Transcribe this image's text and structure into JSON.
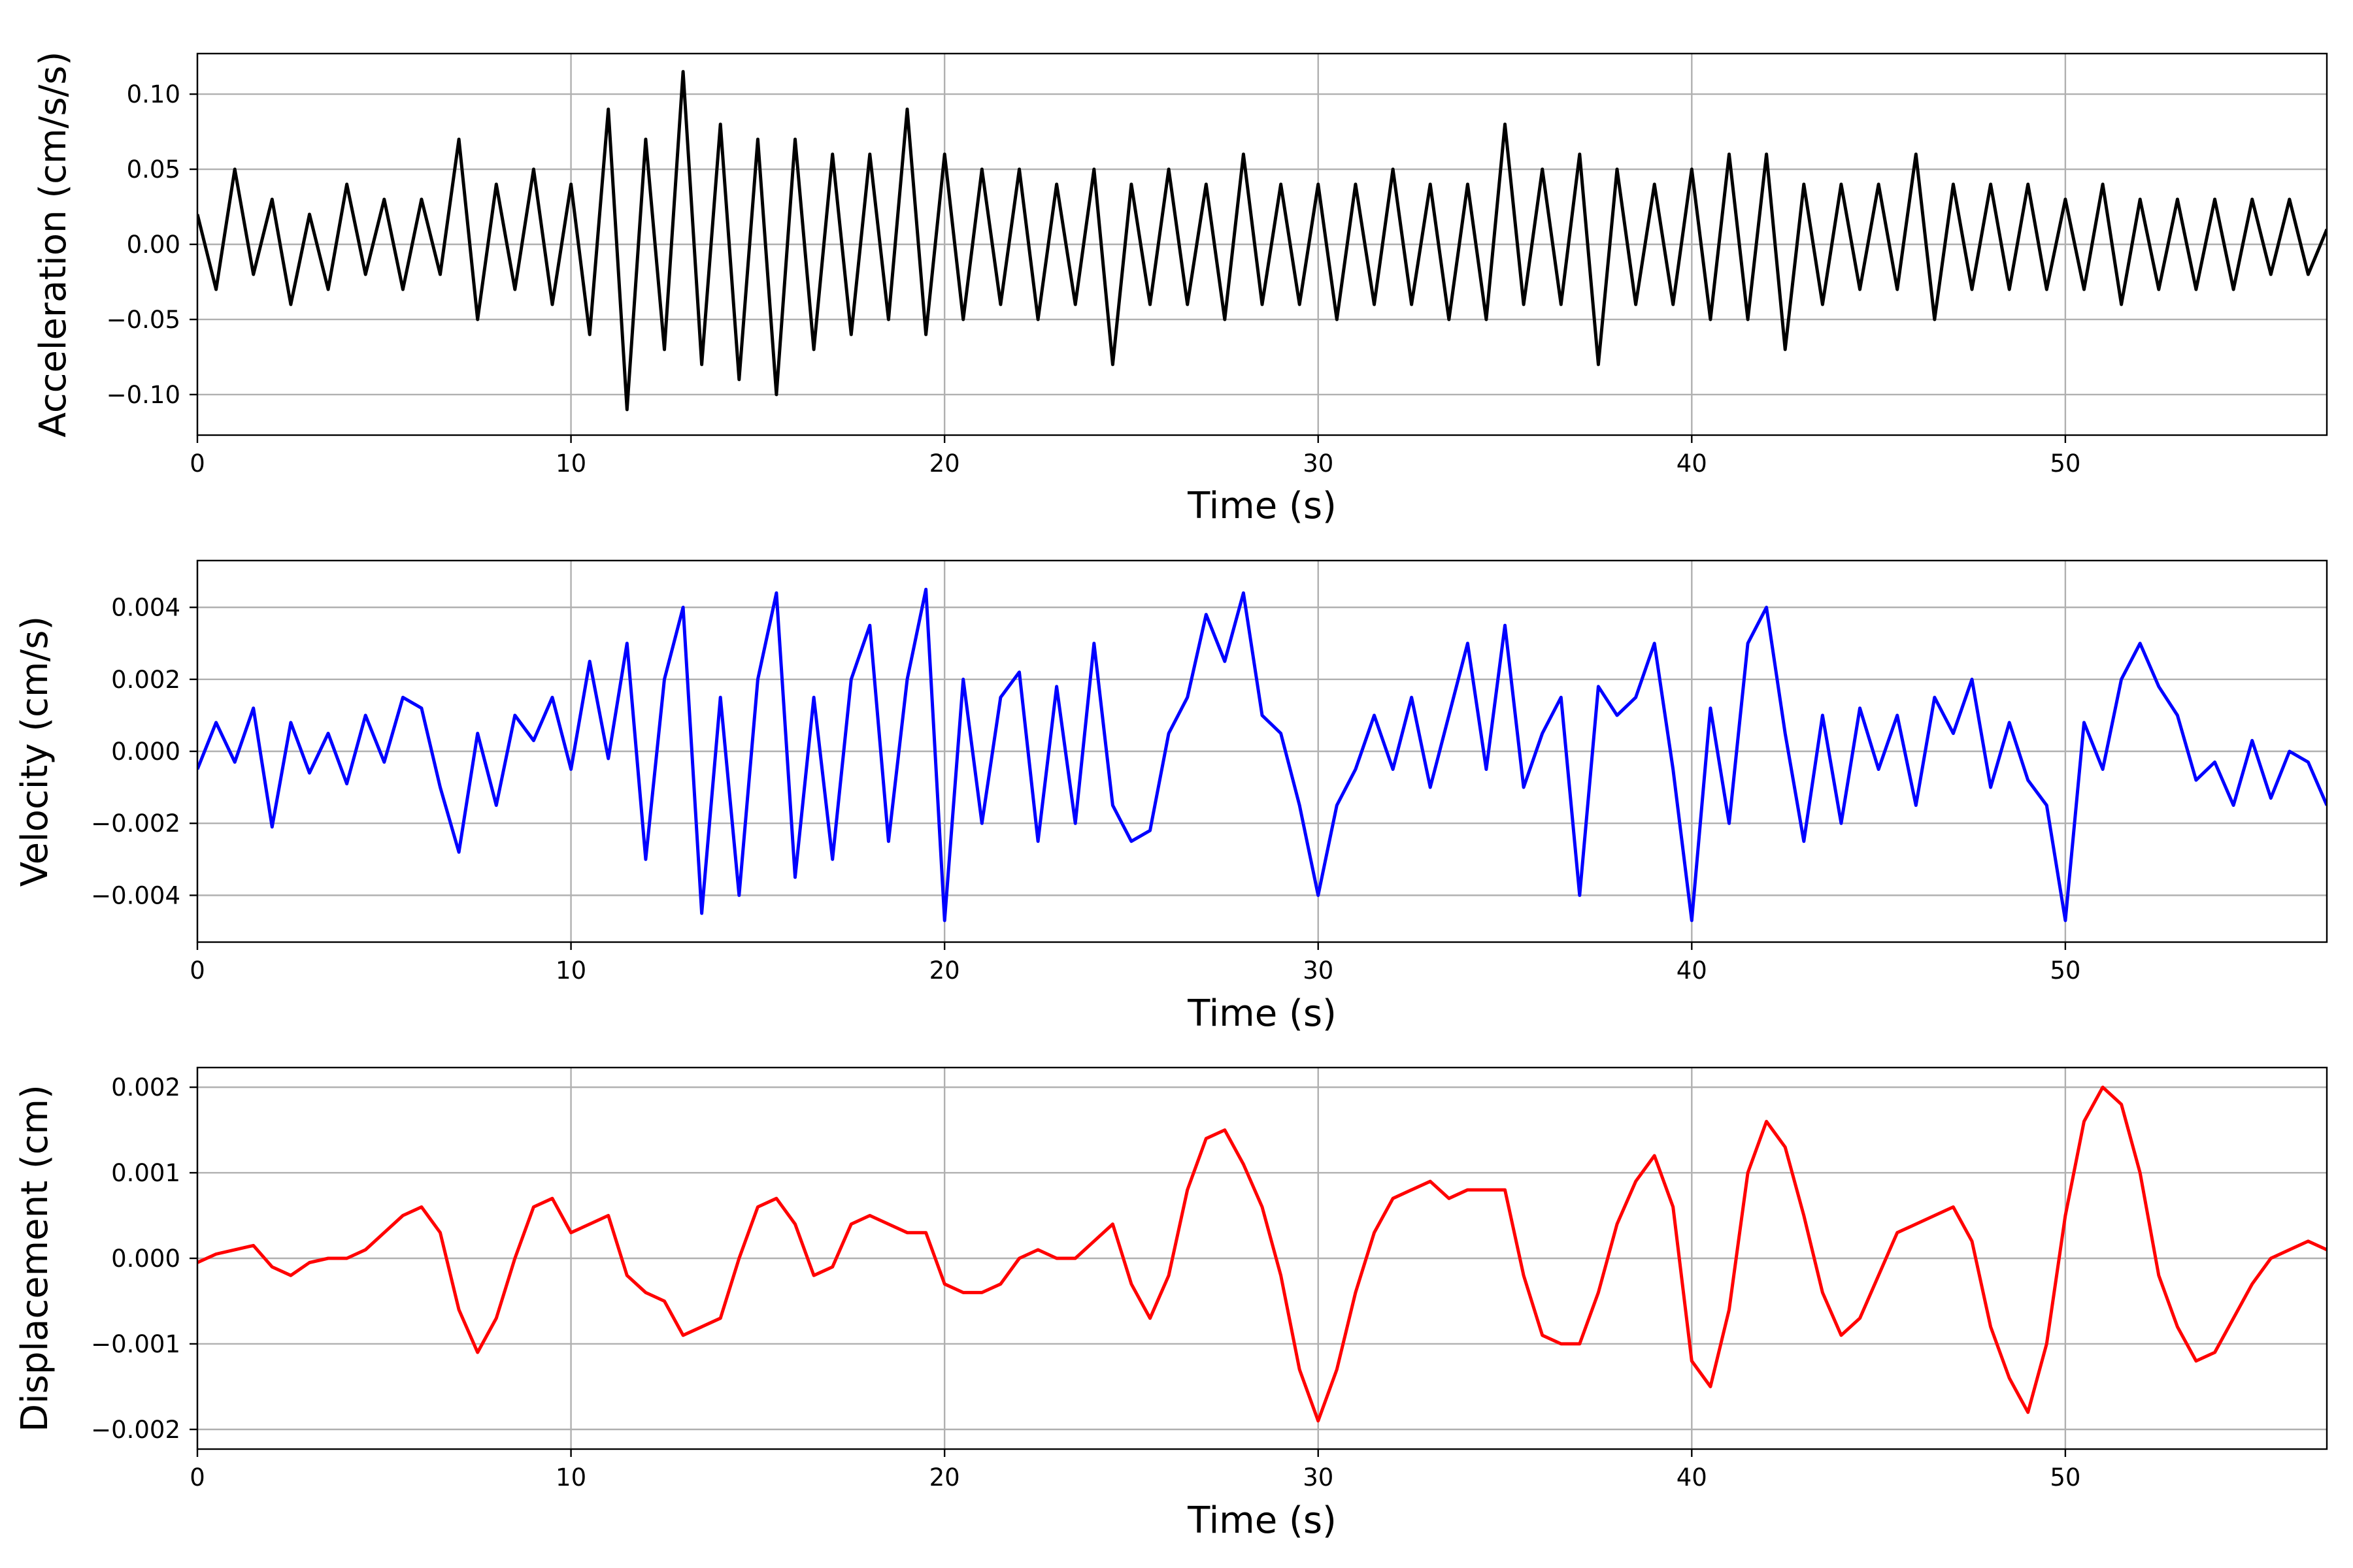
{
  "chart_data": [
    {
      "type": "line",
      "title": "",
      "xlabel": "Time (s)",
      "ylabel": "Acceleration (cm/s/s)",
      "xlim": [
        0,
        57
      ],
      "ylim": [
        -0.127,
        0.127
      ],
      "xticks": [
        0,
        10,
        20,
        30,
        40,
        50
      ],
      "xtick_labels": [
        "0",
        "10",
        "20",
        "30",
        "40",
        "50"
      ],
      "yticks": [
        -0.1,
        -0.05,
        0.0,
        0.05,
        0.1
      ],
      "ytick_labels": [
        "−0.10",
        "−0.05",
        "0.00",
        "0.05",
        "0.10"
      ],
      "grid": true,
      "series": [
        {
          "color": "#000000",
          "x": [
            0,
            0.5,
            1,
            1.5,
            2,
            2.5,
            3,
            3.5,
            4,
            4.5,
            5,
            5.5,
            6,
            6.5,
            7,
            7.5,
            8,
            8.5,
            9,
            9.5,
            10,
            10.5,
            11,
            11.5,
            12,
            12.5,
            13,
            13.5,
            14,
            14.5,
            15,
            15.5,
            16,
            16.5,
            17,
            17.5,
            18,
            18.5,
            19,
            19.5,
            20,
            20.5,
            21,
            21.5,
            22,
            22.5,
            23,
            23.5,
            24,
            24.5,
            25,
            25.5,
            26,
            26.5,
            27,
            27.5,
            28,
            28.5,
            29,
            29.5,
            30,
            30.5,
            31,
            31.5,
            32,
            32.5,
            33,
            33.5,
            34,
            34.5,
            35,
            35.5,
            36,
            36.5,
            37,
            37.5,
            38,
            38.5,
            39,
            39.5,
            40,
            40.5,
            41,
            41.5,
            42,
            42.5,
            43,
            43.5,
            44,
            44.5,
            45,
            45.5,
            46,
            46.5,
            47,
            47.5,
            48,
            48.5,
            49,
            49.5,
            50,
            50.5,
            51,
            51.5,
            52,
            52.5,
            53,
            53.5,
            54,
            54.5,
            55,
            55.5,
            56,
            56.5,
            57
          ],
          "values": [
            0.02,
            -0.03,
            0.05,
            -0.02,
            0.03,
            -0.04,
            0.02,
            -0.03,
            0.04,
            -0.02,
            0.03,
            -0.03,
            0.03,
            -0.02,
            0.07,
            -0.05,
            0.04,
            -0.03,
            0.05,
            -0.04,
            0.04,
            -0.06,
            0.09,
            -0.11,
            0.07,
            -0.07,
            0.115,
            -0.08,
            0.08,
            -0.09,
            0.07,
            -0.1,
            0.07,
            -0.07,
            0.06,
            -0.06,
            0.06,
            -0.05,
            0.09,
            -0.06,
            0.06,
            -0.05,
            0.05,
            -0.04,
            0.05,
            -0.05,
            0.04,
            -0.04,
            0.05,
            -0.08,
            0.04,
            -0.04,
            0.05,
            -0.04,
            0.04,
            -0.05,
            0.06,
            -0.04,
            0.04,
            -0.04,
            0.04,
            -0.05,
            0.04,
            -0.04,
            0.05,
            -0.04,
            0.04,
            -0.05,
            0.04,
            -0.05,
            0.08,
            -0.04,
            0.05,
            -0.04,
            0.06,
            -0.08,
            0.05,
            -0.04,
            0.04,
            -0.04,
            0.05,
            -0.05,
            0.06,
            -0.05,
            0.06,
            -0.07,
            0.04,
            -0.04,
            0.04,
            -0.03,
            0.04,
            -0.03,
            0.06,
            -0.05,
            0.04,
            -0.03,
            0.04,
            -0.03,
            0.04,
            -0.03,
            0.03,
            -0.03,
            0.04,
            -0.04,
            0.03,
            -0.03,
            0.03,
            -0.03,
            0.03,
            -0.03,
            0.03,
            -0.02,
            0.03,
            -0.02,
            0.01
          ]
        }
      ]
    },
    {
      "type": "line",
      "title": "",
      "xlabel": "Time (s)",
      "ylabel": "Velocity (cm/s)",
      "xlim": [
        0,
        57
      ],
      "ylim": [
        -0.0053,
        0.0053
      ],
      "xticks": [
        0,
        10,
        20,
        30,
        40,
        50
      ],
      "xtick_labels": [
        "0",
        "10",
        "20",
        "30",
        "40",
        "50"
      ],
      "yticks": [
        -0.004,
        -0.002,
        0.0,
        0.002,
        0.004
      ],
      "ytick_labels": [
        "−0.004",
        "−0.002",
        "0.000",
        "0.002",
        "0.004"
      ],
      "grid": true,
      "series": [
        {
          "color": "#0000ff",
          "x": [
            0,
            0.5,
            1,
            1.5,
            2,
            2.5,
            3,
            3.5,
            4,
            4.5,
            5,
            5.5,
            6,
            6.5,
            7,
            7.5,
            8,
            8.5,
            9,
            9.5,
            10,
            10.5,
            11,
            11.5,
            12,
            12.5,
            13,
            13.5,
            14,
            14.5,
            15,
            15.5,
            16,
            16.5,
            17,
            17.5,
            18,
            18.5,
            19,
            19.5,
            20,
            20.5,
            21,
            21.5,
            22,
            22.5,
            23,
            23.5,
            24,
            24.5,
            25,
            25.5,
            26,
            26.5,
            27,
            27.5,
            28,
            28.5,
            29,
            29.5,
            30,
            30.5,
            31,
            31.5,
            32,
            32.5,
            33,
            33.5,
            34,
            34.5,
            35,
            35.5,
            36,
            36.5,
            37,
            37.5,
            38,
            38.5,
            39,
            39.5,
            40,
            40.5,
            41,
            41.5,
            42,
            42.5,
            43,
            43.5,
            44,
            44.5,
            45,
            45.5,
            46,
            46.5,
            47,
            47.5,
            48,
            48.5,
            49,
            49.5,
            50,
            50.5,
            51,
            51.5,
            52,
            52.5,
            53,
            53.5,
            54,
            54.5,
            55,
            55.5,
            56,
            56.5,
            57
          ],
          "values": [
            -0.0005,
            0.0008,
            -0.0003,
            0.0012,
            -0.0021,
            0.0008,
            -0.0006,
            0.0005,
            -0.0009,
            0.001,
            -0.0003,
            0.0015,
            0.0012,
            -0.001,
            -0.0028,
            0.0005,
            -0.0015,
            0.001,
            0.0003,
            0.0015,
            -0.0005,
            0.0025,
            -0.0002,
            0.003,
            -0.003,
            0.002,
            0.004,
            -0.0045,
            0.0015,
            -0.004,
            0.002,
            0.0044,
            -0.0035,
            0.0015,
            -0.003,
            0.002,
            0.0035,
            -0.0025,
            0.002,
            0.0045,
            -0.0047,
            0.002,
            -0.002,
            0.0015,
            0.0022,
            -0.0025,
            0.0018,
            -0.002,
            0.003,
            -0.0015,
            -0.0025,
            -0.0022,
            0.0005,
            0.0015,
            0.0038,
            0.0025,
            0.0044,
            0.001,
            0.0005,
            -0.0015,
            -0.004,
            -0.0015,
            -0.0005,
            0.001,
            -0.0005,
            0.0015,
            -0.001,
            0.001,
            0.003,
            -0.0005,
            0.0035,
            -0.001,
            0.0005,
            0.0015,
            -0.004,
            0.0018,
            0.001,
            0.0015,
            0.003,
            -0.0005,
            -0.0047,
            0.0012,
            -0.002,
            0.003,
            0.004,
            0.0005,
            -0.0025,
            0.001,
            -0.002,
            0.0012,
            -0.0005,
            0.001,
            -0.0015,
            0.0015,
            0.0005,
            0.002,
            -0.001,
            0.0008,
            -0.0008,
            -0.0015,
            -0.0047,
            0.0008,
            -0.0005,
            0.002,
            0.003,
            0.0018,
            0.001,
            -0.0008,
            -0.0003,
            -0.0015,
            0.0003,
            -0.0013,
            0.0,
            -0.0003,
            -0.0015
          ]
        }
      ]
    },
    {
      "type": "line",
      "title": "",
      "xlabel": "Time (s)",
      "ylabel": "Displacement (cm)",
      "xlim": [
        0,
        57
      ],
      "ylim": [
        -0.00223,
        0.00223
      ],
      "xticks": [
        0,
        10,
        20,
        30,
        40,
        50
      ],
      "xtick_labels": [
        "0",
        "10",
        "20",
        "30",
        "40",
        "50"
      ],
      "yticks": [
        -0.002,
        -0.001,
        0.0,
        0.001,
        0.002
      ],
      "ytick_labels": [
        "−0.002",
        "−0.001",
        "0.000",
        "0.001",
        "0.002"
      ],
      "grid": true,
      "series": [
        {
          "color": "#ff0000",
          "x": [
            0,
            0.5,
            1,
            1.5,
            2,
            2.5,
            3,
            3.5,
            4,
            4.5,
            5,
            5.5,
            6,
            6.5,
            7,
            7.5,
            8,
            8.5,
            9,
            9.5,
            10,
            10.5,
            11,
            11.5,
            12,
            12.5,
            13,
            13.5,
            14,
            14.5,
            15,
            15.5,
            16,
            16.5,
            17,
            17.5,
            18,
            18.5,
            19,
            19.5,
            20,
            20.5,
            21,
            21.5,
            22,
            22.5,
            23,
            23.5,
            24,
            24.5,
            25,
            25.5,
            26,
            26.5,
            27,
            27.5,
            28,
            28.5,
            29,
            29.5,
            30,
            30.5,
            31,
            31.5,
            32,
            32.5,
            33,
            33.5,
            34,
            34.5,
            35,
            35.5,
            36,
            36.5,
            37,
            37.5,
            38,
            38.5,
            39,
            39.5,
            40,
            40.5,
            41,
            41.5,
            42,
            42.5,
            43,
            43.5,
            44,
            44.5,
            45,
            45.5,
            46,
            46.5,
            47,
            47.5,
            48,
            48.5,
            49,
            49.5,
            50,
            50.5,
            51,
            51.5,
            52,
            52.5,
            53,
            53.5,
            54,
            54.5,
            55,
            55.5,
            56,
            56.5,
            57
          ],
          "values": [
            -5e-05,
            5e-05,
            0.0001,
            0.00015,
            -0.0001,
            -0.0002,
            -5e-05,
            0.0,
            0.0,
            0.0001,
            0.0003,
            0.0005,
            0.0006,
            0.0003,
            -0.0006,
            -0.0011,
            -0.0007,
            0.0,
            0.0006,
            0.0007,
            0.0003,
            0.0004,
            0.0005,
            -0.0002,
            -0.0004,
            -0.0005,
            -0.0009,
            -0.0008,
            -0.0007,
            0.0,
            0.0006,
            0.0007,
            0.0004,
            -0.0002,
            -0.0001,
            0.0004,
            0.0005,
            0.0004,
            0.0003,
            0.0003,
            -0.0003,
            -0.0004,
            -0.0004,
            -0.0003,
            0.0,
            0.0001,
            0.0,
            0.0,
            0.0002,
            0.0004,
            -0.0003,
            -0.0007,
            -0.0002,
            0.0008,
            0.0014,
            0.0015,
            0.0011,
            0.0006,
            -0.0002,
            -0.0013,
            -0.0019,
            -0.0013,
            -0.0004,
            0.0003,
            0.0007,
            0.0008,
            0.0009,
            0.0007,
            0.0008,
            0.0008,
            0.0008,
            -0.0002,
            -0.0009,
            -0.001,
            -0.001,
            -0.0004,
            0.0004,
            0.0009,
            0.0012,
            0.0006,
            -0.0012,
            -0.0015,
            -0.0006,
            0.001,
            0.0016,
            0.0013,
            0.0005,
            -0.0004,
            -0.0009,
            -0.0007,
            -0.0002,
            0.0003,
            0.0004,
            0.0005,
            0.0006,
            0.0002,
            -0.0008,
            -0.0014,
            -0.0018,
            -0.001,
            0.0005,
            0.0016,
            0.002,
            0.0018,
            0.001,
            -0.0002,
            -0.0008,
            -0.0012,
            -0.0011,
            -0.0007,
            -0.0003,
            0.0,
            0.0001,
            0.0002,
            0.0001
          ]
        }
      ]
    }
  ]
}
